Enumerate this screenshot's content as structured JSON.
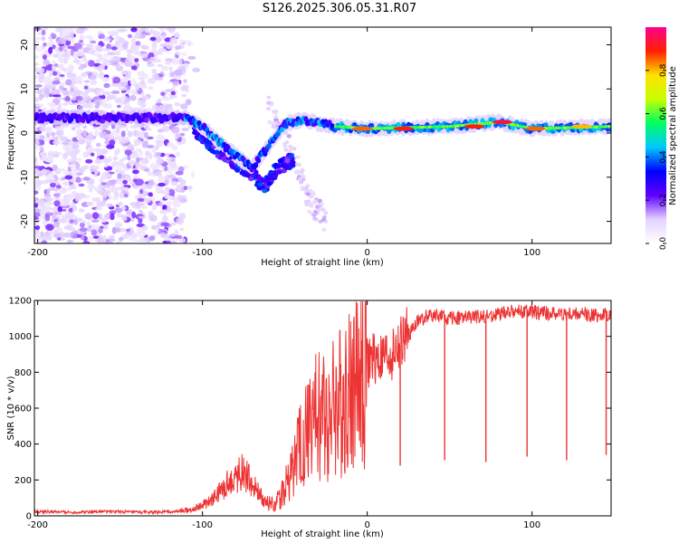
{
  "title": "S126.2025.306.05.31.R07",
  "chart_data": [
    {
      "type": "heatmap",
      "panel": "spectrogram",
      "xlabel": "Height of straight line (km)",
      "ylabel": "Frequency (Hz)",
      "xlim": [
        -202,
        148
      ],
      "ylim": [
        -25,
        24
      ],
      "x_ticks": [
        -200,
        -100,
        0,
        100
      ],
      "y_ticks": [
        -20,
        -10,
        0,
        10,
        20
      ],
      "x_tick_labels": [
        "-200",
        "-100",
        "0",
        "100"
      ],
      "y_tick_labels": [
        "-20",
        "-10",
        "0",
        "10",
        "20"
      ],
      "colorbar": {
        "label": "Normalized spectral amplitude",
        "range": [
          0,
          1
        ],
        "ticks": [
          0.0,
          0.2,
          0.4,
          0.6,
          0.8
        ],
        "tick_labels": [
          "0.0",
          "0.2",
          "0.4",
          "0.6",
          "0.8"
        ],
        "colors": [
          "#ffffff",
          "#e4d2ff",
          "#6000ff",
          "#0000ff",
          "#00c8ff",
          "#00ff60",
          "#c8ff00",
          "#ffe000",
          "#ff2000",
          "#ff0090"
        ]
      },
      "noise_region": {
        "x": [
          -202,
          -110
        ],
        "y": [
          -25,
          24
        ],
        "level": 0.12
      },
      "ridge": [
        {
          "x": -202,
          "y": 3.5
        },
        {
          "x": -110,
          "y": 3.5
        },
        {
          "x": -100,
          "y": 1.5
        },
        {
          "x": -90,
          "y": -2
        },
        {
          "x": -80,
          "y": -5
        },
        {
          "x": -70,
          "y": -8
        },
        {
          "x": -60,
          "y": -3
        },
        {
          "x": -50,
          "y": 2
        },
        {
          "x": -40,
          "y": 3
        },
        {
          "x": -20,
          "y": 1.5
        },
        {
          "x": 0,
          "y": 1
        },
        {
          "x": 50,
          "y": 1.5
        },
        {
          "x": 80,
          "y": 2.5
        },
        {
          "x": 100,
          "y": 1
        },
        {
          "x": 148,
          "y": 1.5
        }
      ],
      "secondary_ridge": [
        {
          "x": -105,
          "y": 1
        },
        {
          "x": -90,
          "y": -4
        },
        {
          "x": -75,
          "y": -8
        },
        {
          "x": -62,
          "y": -12
        },
        {
          "x": -55,
          "y": -8
        },
        {
          "x": -45,
          "y": -6
        }
      ],
      "faint_tail": [
        {
          "x": -60,
          "y": 6
        },
        {
          "x": -45,
          "y": -5
        },
        {
          "x": -35,
          "y": -15
        },
        {
          "x": -25,
          "y": -20
        }
      ],
      "hotspots": [
        {
          "x": -3,
          "y": 1,
          "amp": 0.85
        },
        {
          "x": 22,
          "y": 1,
          "amp": 0.9
        },
        {
          "x": 65,
          "y": 1.5,
          "amp": 0.9
        },
        {
          "x": 82,
          "y": 2.5,
          "amp": 0.95
        },
        {
          "x": 102,
          "y": 1,
          "amp": 0.85
        },
        {
          "x": 130,
          "y": 1.5,
          "amp": 0.8
        }
      ]
    },
    {
      "type": "line",
      "panel": "snr",
      "xlabel": "Height of straight line (km)",
      "ylabel": "SNR (10 * v/v)",
      "xlim": [
        -202,
        148
      ],
      "ylim": [
        0,
        1200
      ],
      "x_ticks": [
        -200,
        -100,
        0,
        100
      ],
      "y_ticks": [
        0,
        200,
        400,
        600,
        800,
        1000,
        1200
      ],
      "x_tick_labels": [
        "-200",
        "-100",
        "0",
        "100"
      ],
      "y_tick_labels": [
        "0",
        "200",
        "400",
        "600",
        "800",
        "1000",
        "1200"
      ],
      "color": "#ee3333",
      "series": [
        {
          "name": "SNR",
          "x": [
            -202,
            -180,
            -160,
            -140,
            -125,
            -115,
            -105,
            -95,
            -90,
            -85,
            -80,
            -76,
            -72,
            -68,
            -62,
            -55,
            -48,
            -42,
            -36,
            -30,
            -25,
            -20,
            -15,
            -10,
            -6,
            0,
            4,
            8,
            14,
            20,
            25,
            30,
            38,
            50,
            70,
            90,
            110,
            130,
            148
          ],
          "y": [
            25,
            20,
            25,
            20,
            20,
            25,
            40,
            80,
            130,
            180,
            220,
            260,
            200,
            150,
            80,
            70,
            200,
            350,
            500,
            550,
            580,
            600,
            650,
            700,
            780,
            850,
            880,
            870,
            900,
            950,
            1000,
            1080,
            1120,
            1100,
            1110,
            1140,
            1130,
            1120,
            1120
          ]
        }
      ],
      "dips": [
        {
          "x": 20,
          "y": 280
        },
        {
          "x": 47,
          "y": 310
        },
        {
          "x": 72,
          "y": 300
        },
        {
          "x": 97,
          "y": 330
        },
        {
          "x": 121,
          "y": 310
        },
        {
          "x": 145,
          "y": 340
        }
      ]
    }
  ]
}
